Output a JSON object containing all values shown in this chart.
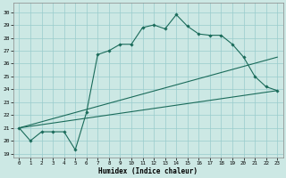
{
  "xlabel": "Humidex (Indice chaleur)",
  "background_color": "#cce8e4",
  "grid_color": "#99cccc",
  "line_color": "#1a6b5a",
  "xlim": [
    -0.5,
    23.5
  ],
  "ylim": [
    18.7,
    30.7
  ],
  "series": [
    {
      "x": [
        0,
        1,
        2,
        3,
        4,
        5,
        6,
        7,
        8,
        9,
        10,
        11,
        12,
        13,
        14,
        15,
        16,
        17,
        18,
        19,
        20,
        21,
        22,
        23
      ],
      "y": [
        21.0,
        20.0,
        20.7,
        20.7,
        20.7,
        19.3,
        22.2,
        26.7,
        27.0,
        27.5,
        27.5,
        28.8,
        29.0,
        28.7,
        29.8,
        28.9,
        28.3,
        28.2,
        28.2,
        27.5,
        26.5,
        25.0,
        24.2,
        23.9
      ],
      "marker": "D",
      "markersize": 1.8
    },
    {
      "x": [
        0,
        23
      ],
      "y": [
        21.0,
        26.5
      ],
      "marker": null
    },
    {
      "x": [
        0,
        23
      ],
      "y": [
        21.0,
        23.9
      ],
      "marker": null
    }
  ],
  "xticks": [
    0,
    1,
    2,
    3,
    4,
    5,
    6,
    7,
    8,
    9,
    10,
    11,
    12,
    13,
    14,
    15,
    16,
    17,
    18,
    19,
    20,
    21,
    22,
    23
  ],
  "xtick_labels": [
    "0",
    "1",
    "2",
    "3",
    "4",
    "5",
    "6",
    "7",
    "8",
    "9",
    "10",
    "11",
    "12",
    "13",
    "14",
    "15",
    "16",
    "17",
    "18",
    "19",
    "20",
    "21",
    "22",
    "23"
  ],
  "yticks": [
    19,
    20,
    21,
    22,
    23,
    24,
    25,
    26,
    27,
    28,
    29,
    30
  ],
  "ytick_labels": [
    "19",
    "20",
    "21",
    "22",
    "23",
    "24",
    "25",
    "26",
    "27",
    "28",
    "29",
    "30"
  ]
}
